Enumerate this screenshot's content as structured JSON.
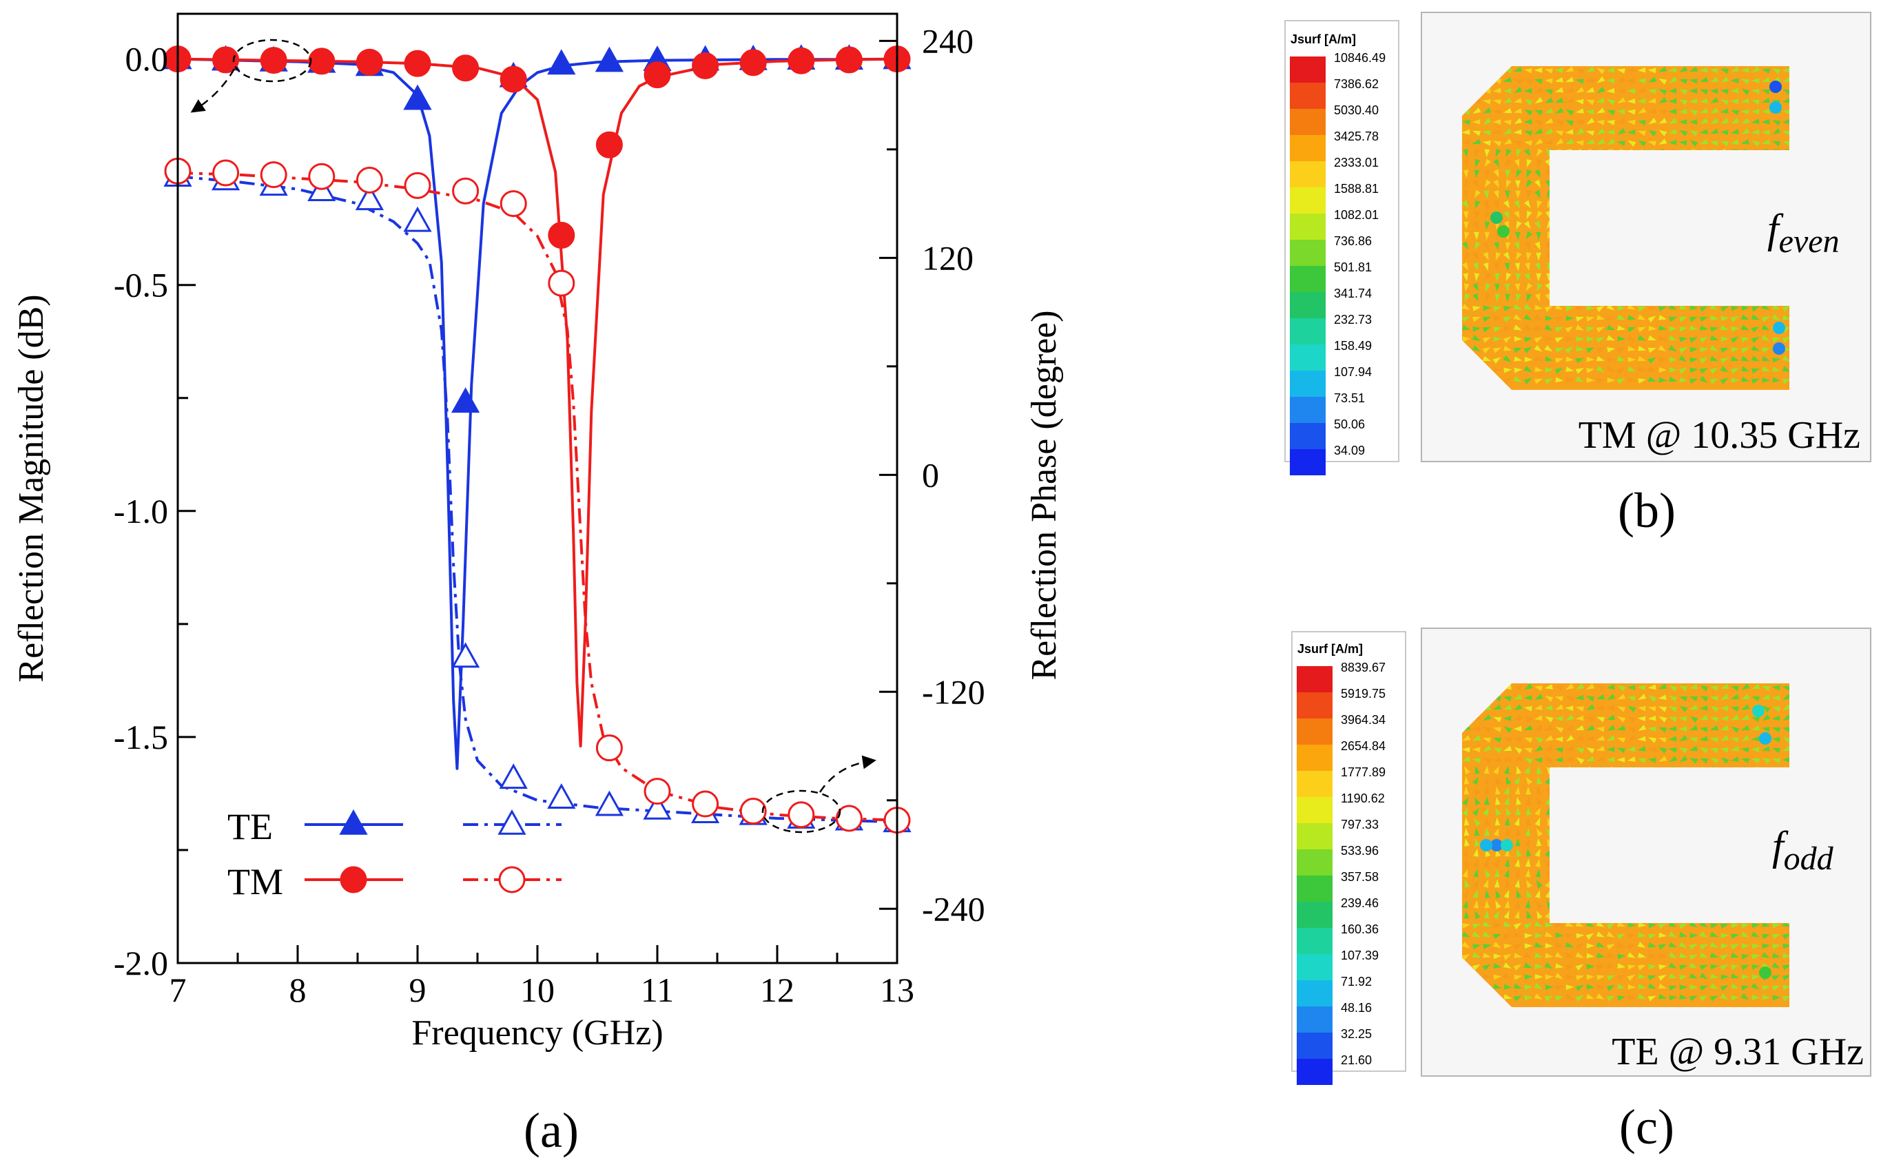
{
  "chart_data": [
    {
      "type": "line",
      "panel_label": "(a)",
      "xlabel": "Frequency (GHz)",
      "ylabel": "Reflection Magnitude (dB)",
      "ylabel_right": "Reflection Phase (degree)",
      "xlim": [
        7,
        13
      ],
      "ylim": [
        -2.0,
        0.1
      ],
      "ylim_right": [
        -270,
        255
      ],
      "x_ticks": [
        "7",
        "8",
        "9",
        "10",
        "11",
        "12",
        "13"
      ],
      "x_tick_values": [
        7,
        8,
        9,
        10,
        11,
        12,
        13
      ],
      "y_ticks": [
        "0.0",
        "-0.5",
        "-1.0",
        "-1.5",
        "-2.0"
      ],
      "y_tick_values": [
        0,
        -0.5,
        -1.0,
        -1.5,
        -2.0
      ],
      "y_right_ticks": [
        "240",
        "120",
        "0",
        "-120",
        "-240"
      ],
      "y_right_tick_values": [
        240,
        120,
        0,
        -120,
        -240
      ],
      "legend": [
        {
          "label": "TE",
          "color": "#1a35e0"
        },
        {
          "label": "TM",
          "color": "#ee1c1c"
        }
      ],
      "series": [
        {
          "name": "TE magnitude",
          "color": "#1a35e0",
          "marker": "triangle-filled",
          "dash": "solid",
          "axis": "left",
          "x": [
            7.0,
            7.5,
            8.0,
            8.5,
            8.8,
            9.0,
            9.1,
            9.2,
            9.25,
            9.3,
            9.33,
            9.38,
            9.45,
            9.55,
            9.7,
            9.85,
            10.0,
            10.2,
            10.5,
            11.0,
            11.5,
            12.0,
            12.5,
            13.0
          ],
          "y": [
            0.0,
            -0.003,
            -0.006,
            -0.012,
            -0.03,
            -0.08,
            -0.17,
            -0.45,
            -0.9,
            -1.42,
            -1.57,
            -1.25,
            -0.72,
            -0.32,
            -0.12,
            -0.06,
            -0.03,
            -0.015,
            -0.007,
            -0.003,
            -0.002,
            -0.001,
            -0.001,
            0.0
          ],
          "marker_x": [
            7.0,
            7.4,
            7.8,
            8.2,
            8.6,
            9.0,
            9.4,
            9.8,
            10.2,
            10.6,
            11.0,
            11.4,
            11.8,
            12.2,
            12.6,
            13.0
          ],
          "marker_y": [
            0.0,
            -0.003,
            -0.005,
            -0.008,
            -0.015,
            -0.09,
            -0.76,
            -0.04,
            -0.012,
            -0.006,
            -0.004,
            -0.003,
            -0.002,
            -0.001,
            -0.001,
            0.0
          ]
        },
        {
          "name": "TM magnitude",
          "color": "#ee1c1c",
          "marker": "circle-filled",
          "dash": "solid",
          "axis": "left",
          "x": [
            7.0,
            7.5,
            8.0,
            8.5,
            9.0,
            9.5,
            9.8,
            10.0,
            10.15,
            10.25,
            10.3,
            10.33,
            10.36,
            10.4,
            10.45,
            10.55,
            10.7,
            10.85,
            11.0,
            11.5,
            12.0,
            12.5,
            13.0
          ],
          "y": [
            0.0,
            -0.002,
            -0.004,
            -0.006,
            -0.01,
            -0.02,
            -0.04,
            -0.09,
            -0.25,
            -0.62,
            -1.05,
            -1.38,
            -1.52,
            -1.25,
            -0.78,
            -0.3,
            -0.12,
            -0.06,
            -0.04,
            -0.012,
            -0.005,
            -0.002,
            0.0
          ],
          "marker_x": [
            7.0,
            7.4,
            7.8,
            8.2,
            8.6,
            9.0,
            9.4,
            9.8,
            10.2,
            10.6,
            11.0,
            11.4,
            11.8,
            12.2,
            12.6,
            13.0
          ],
          "marker_y": [
            0.0,
            -0.002,
            -0.003,
            -0.005,
            -0.007,
            -0.01,
            -0.02,
            -0.045,
            -0.39,
            -0.19,
            -0.035,
            -0.015,
            -0.008,
            -0.004,
            -0.002,
            0.0
          ]
        },
        {
          "name": "TE phase",
          "color": "#1a35e0",
          "marker": "triangle-open",
          "dash": "dashdot",
          "axis": "right",
          "x": [
            7.0,
            7.5,
            8.0,
            8.5,
            8.8,
            9.0,
            9.1,
            9.2,
            9.25,
            9.3,
            9.35,
            9.4,
            9.5,
            9.7,
            10.0,
            10.5,
            11.0,
            11.5,
            12.0,
            12.5,
            13.0
          ],
          "y": [
            165,
            162,
            158,
            150,
            140,
            128,
            118,
            80,
            30,
            -50,
            -105,
            -135,
            -158,
            -172,
            -180,
            -184,
            -186,
            -188,
            -190,
            -191,
            -192
          ],
          "marker_x": [
            7.0,
            7.4,
            7.8,
            8.2,
            8.6,
            9.0,
            9.4,
            9.8,
            10.2,
            10.6,
            11.0,
            11.4,
            11.8,
            12.2,
            12.6,
            13.0
          ],
          "marker_y": [
            165,
            163,
            160,
            157,
            152,
            140,
            -101,
            -168,
            -179,
            -183,
            -185,
            -187,
            -188,
            -190,
            -191,
            -192
          ]
        },
        {
          "name": "TM phase",
          "color": "#ee1c1c",
          "marker": "circle-open",
          "dash": "dashdot",
          "axis": "right",
          "x": [
            7.0,
            7.5,
            8.0,
            8.5,
            9.0,
            9.5,
            9.8,
            10.0,
            10.15,
            10.25,
            10.3,
            10.35,
            10.4,
            10.45,
            10.55,
            10.7,
            11.0,
            11.5,
            12.0,
            12.5,
            13.0
          ],
          "y": [
            167,
            166,
            164,
            162,
            158,
            152,
            145,
            132,
            112,
            80,
            40,
            -20,
            -80,
            -115,
            -145,
            -162,
            -175,
            -184,
            -188,
            -190,
            -191
          ],
          "marker_x": [
            7.0,
            7.4,
            7.8,
            8.2,
            8.6,
            9.0,
            9.4,
            9.8,
            10.2,
            10.6,
            11.0,
            11.4,
            11.8,
            12.2,
            12.6,
            13.0
          ],
          "marker_y": [
            168,
            167,
            166,
            165,
            163,
            160,
            157,
            150,
            106,
            -151,
            -175,
            -182,
            -186,
            -188,
            -190,
            -191
          ]
        }
      ]
    },
    {
      "type": "heatmap",
      "panel_label": "(b)",
      "colorbar_title": "Jsurf [A/m]",
      "colorbar_values": [
        "10846.49",
        "7386.62",
        "5030.40",
        "3425.78",
        "2333.01",
        "1588.81",
        "1082.01",
        "736.86",
        "501.81",
        "341.74",
        "232.73",
        "158.49",
        "107.94",
        "73.51",
        "50.06",
        "34.09"
      ],
      "annotation": "TM @ 10.35 GHz",
      "mode_label": "f",
      "mode_subscript": "even"
    },
    {
      "type": "heatmap",
      "panel_label": "(c)",
      "colorbar_title": "Jsurf [A/m]",
      "colorbar_values": [
        "8839.67",
        "5919.75",
        "3964.34",
        "2654.84",
        "1777.89",
        "1190.62",
        "797.33",
        "533.96",
        "357.58",
        "239.46",
        "160.36",
        "107.39",
        "71.92",
        "48.16",
        "32.25",
        "21.60"
      ],
      "annotation": "TE @ 9.31 GHz",
      "mode_label": "f",
      "mode_subscript": "odd"
    }
  ],
  "colors": {
    "te": "#1a35e0",
    "tm": "#ee1c1c",
    "colormap": [
      "#e41a1c",
      "#f04a16",
      "#f57d10",
      "#fba60d",
      "#fcd01a",
      "#e8ec1c",
      "#b8e820",
      "#7ad92a",
      "#3cc83a",
      "#22c466",
      "#1ed29e",
      "#1cd6c8",
      "#16b8ea",
      "#1e86ee",
      "#1a52ee",
      "#1226f0"
    ]
  }
}
